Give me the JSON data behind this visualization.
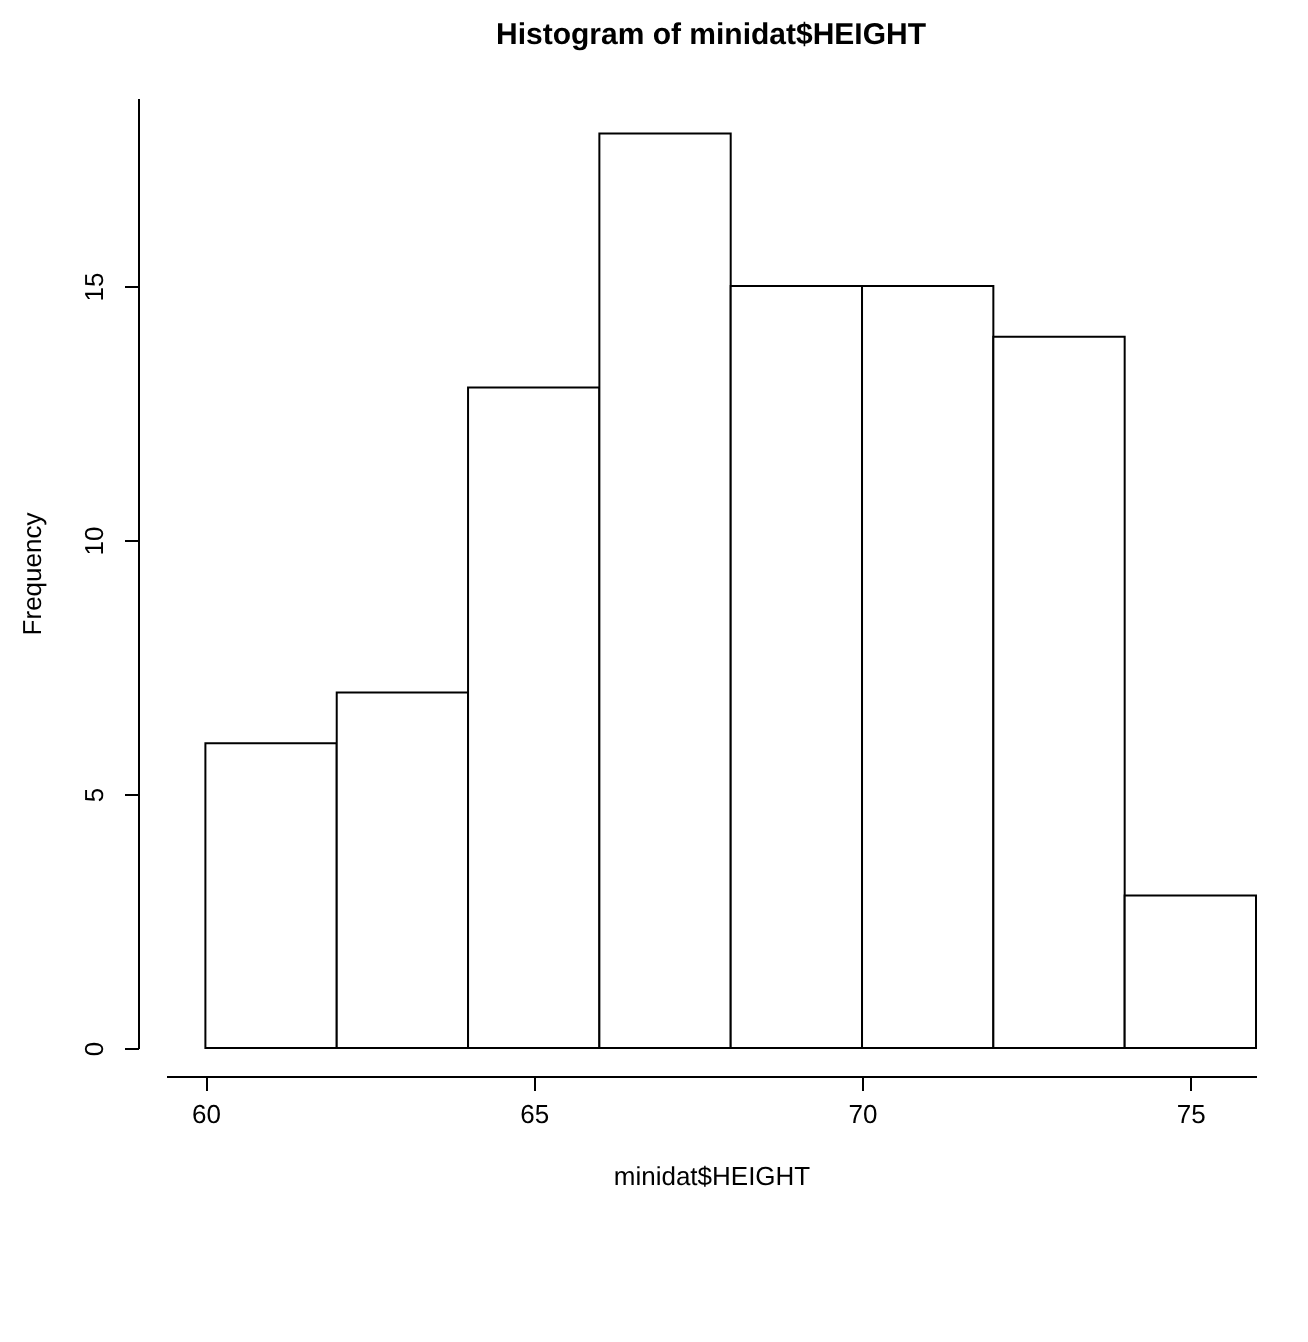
{
  "chart_data": {
    "type": "histogram",
    "title": "Histogram of minidat$HEIGHT",
    "xlabel": "minidat$HEIGHT",
    "ylabel": "Frequency",
    "bins": [
      60,
      62,
      64,
      66,
      68,
      70,
      72,
      74,
      76
    ],
    "values": [
      6,
      7,
      13,
      18,
      15,
      15,
      14,
      3
    ],
    "color": "#ffffff",
    "xlim": [
      59.4,
      76
    ],
    "xticks": [
      60,
      65,
      70,
      75
    ],
    "ylim": [
      0,
      18.7
    ],
    "yticks": [
      0,
      5,
      10,
      15
    ],
    "grid": false
  }
}
